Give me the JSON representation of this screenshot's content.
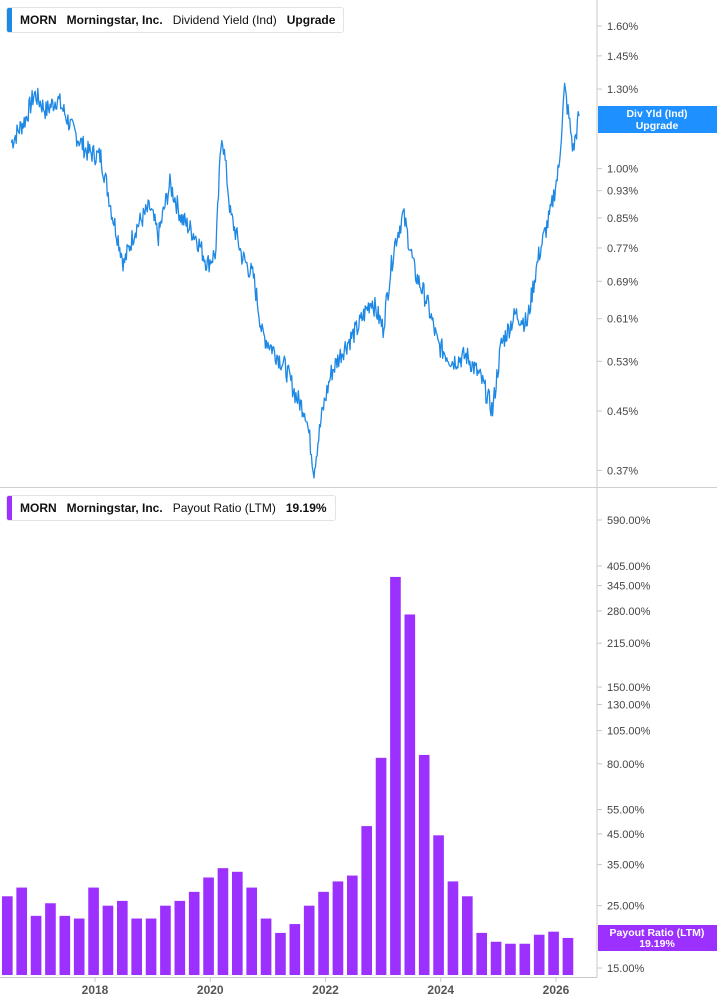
{
  "legends": {
    "top": {
      "ticker": "MORN",
      "company": "Morningstar, Inc.",
      "metric": "Dividend Yield (Ind)",
      "value": "Upgrade",
      "color": "#1e88e5"
    },
    "bottom": {
      "ticker": "MORN",
      "company": "Morningstar, Inc.",
      "metric": "Payout Ratio (LTM)",
      "value": "19.19%",
      "color": "#9b30ff"
    }
  },
  "tags": {
    "top": {
      "line1": "Div Yld (Ind)",
      "line2": "Upgrade",
      "color": "#1e90ff"
    },
    "bottom": {
      "line1": "Payout Ratio (LTM)",
      "line2": "19.19%",
      "color": "#9b30ff"
    }
  },
  "chart_data": [
    {
      "type": "line",
      "scale": "log",
      "grid": false,
      "y_ticks": [
        1.6,
        1.45,
        1.3,
        1.0,
        0.93,
        0.85,
        0.77,
        0.69,
        0.61,
        0.53,
        0.45,
        0.37
      ],
      "y_tick_labels": [
        "1.60%",
        "1.45%",
        "1.30%",
        "1.00%",
        "0.93%",
        "0.85%",
        "0.77%",
        "0.69%",
        "0.61%",
        "0.53%",
        "0.45%",
        "0.37%"
      ],
      "series": [
        {
          "color": "#1e88e5",
          "points": [
            [
              2016.55,
              1.09
            ],
            [
              2016.8,
              1.18
            ],
            [
              2016.95,
              1.28
            ],
            [
              2017.15,
              1.21
            ],
            [
              2017.35,
              1.26
            ],
            [
              2017.6,
              1.14
            ],
            [
              2017.85,
              1.06
            ],
            [
              2018.1,
              1.04
            ],
            [
              2018.3,
              0.86
            ],
            [
              2018.5,
              0.73
            ],
            [
              2018.7,
              0.82
            ],
            [
              2018.95,
              0.88
            ],
            [
              2019.1,
              0.8
            ],
            [
              2019.3,
              0.95
            ],
            [
              2019.5,
              0.85
            ],
            [
              2019.75,
              0.8
            ],
            [
              2019.95,
              0.73
            ],
            [
              2020.1,
              0.76
            ],
            [
              2020.2,
              1.13
            ],
            [
              2020.35,
              0.86
            ],
            [
              2020.55,
              0.75
            ],
            [
              2020.75,
              0.7
            ],
            [
              2020.9,
              0.58
            ],
            [
              2021.1,
              0.55
            ],
            [
              2021.3,
              0.52
            ],
            [
              2021.5,
              0.47
            ],
            [
              2021.65,
              0.45
            ],
            [
              2021.8,
              0.37
            ],
            [
              2021.95,
              0.45
            ],
            [
              2022.1,
              0.51
            ],
            [
              2022.3,
              0.55
            ],
            [
              2022.55,
              0.59
            ],
            [
              2022.8,
              0.65
            ],
            [
              2023.0,
              0.59
            ],
            [
              2023.2,
              0.78
            ],
            [
              2023.35,
              0.86
            ],
            [
              2023.55,
              0.71
            ],
            [
              2023.75,
              0.65
            ],
            [
              2023.95,
              0.56
            ],
            [
              2024.2,
              0.53
            ],
            [
              2024.45,
              0.54
            ],
            [
              2024.7,
              0.5
            ],
            [
              2024.9,
              0.45
            ],
            [
              2025.05,
              0.56
            ],
            [
              2025.3,
              0.62
            ],
            [
              2025.5,
              0.6
            ],
            [
              2025.7,
              0.75
            ],
            [
              2025.9,
              0.86
            ],
            [
              2026.05,
              1.0
            ],
            [
              2026.15,
              1.3
            ],
            [
              2026.3,
              1.06
            ],
            [
              2026.4,
              1.19
            ]
          ]
        }
      ]
    },
    {
      "type": "bar",
      "scale": "log",
      "grid": false,
      "y_ticks": [
        590,
        405,
        345,
        280,
        215,
        150,
        130,
        105,
        80,
        55,
        45,
        35,
        25,
        15
      ],
      "y_tick_labels": [
        "590.00%",
        "405.00%",
        "345.00%",
        "280.00%",
        "215.00%",
        "150.00%",
        "130.00%",
        "105.00%",
        "80.00%",
        "55.00%",
        "45.00%",
        "35.00%",
        "25.00%",
        "15.00%"
      ],
      "x_tick_labels": [
        "2018",
        "2020",
        "2022",
        "2024",
        "2026"
      ],
      "series": [
        {
          "name": "Payout Ratio (LTM)",
          "color": "#9b30ff",
          "values": [
            27,
            29,
            23,
            25.5,
            23,
            22.5,
            29,
            25,
            26,
            22.5,
            22.5,
            25,
            26,
            28,
            31.5,
            34,
            33,
            29,
            22.5,
            20,
            21.5,
            25,
            28,
            30.5,
            32,
            48,
            84,
            370,
            272,
            86,
            44.5,
            30.5,
            27,
            20,
            18.6,
            18.3,
            18.3,
            19.7,
            20.2,
            19.19
          ]
        }
      ]
    }
  ]
}
